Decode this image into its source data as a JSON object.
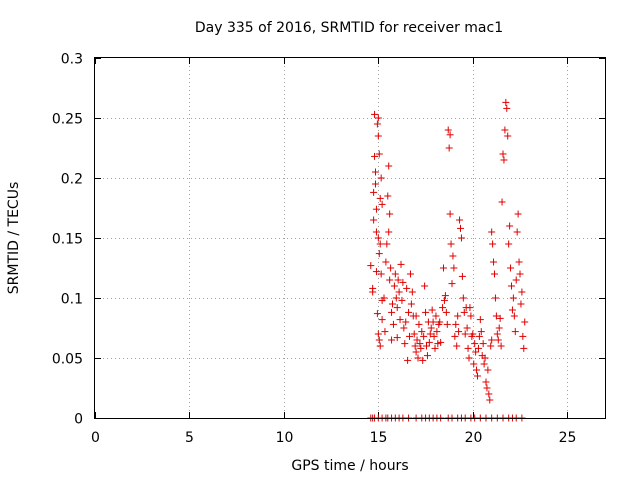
{
  "chart_data": {
    "type": "scatter",
    "title": "Day 335 of 2016, SRMTID for receiver mac1",
    "xlabel": "GPS time / hours",
    "ylabel": "SRMTID / TECUs",
    "xlim": [
      0,
      27
    ],
    "ylim": [
      0,
      0.3
    ],
    "xticks": [
      0,
      5,
      10,
      15,
      20,
      25
    ],
    "xtick_labels": [
      "0",
      "5",
      "10",
      "15",
      "20",
      "25"
    ],
    "yticks": [
      0,
      0.05,
      0.1,
      0.15,
      0.2,
      0.25,
      0.3
    ],
    "ytick_labels": [
      "0",
      "0.05",
      "0.1",
      "0.15",
      "0.2",
      "0.25",
      "0.3"
    ],
    "grid": true,
    "marker": "+",
    "color": "#e00000",
    "series": [
      {
        "name": "SRMTID",
        "points": [
          [
            14.6,
            0.0
          ],
          [
            14.7,
            0.0
          ],
          [
            14.8,
            0.0
          ],
          [
            15.0,
            0.0
          ],
          [
            15.2,
            0.0
          ],
          [
            15.4,
            0.0
          ],
          [
            15.5,
            0.0
          ],
          [
            15.7,
            0.0
          ],
          [
            15.9,
            0.0
          ],
          [
            16.1,
            0.0
          ],
          [
            16.3,
            0.0
          ],
          [
            16.6,
            0.0
          ],
          [
            17.0,
            0.0
          ],
          [
            17.3,
            0.0
          ],
          [
            17.5,
            0.0
          ],
          [
            17.7,
            0.0
          ],
          [
            17.9,
            0.0
          ],
          [
            18.1,
            0.0
          ],
          [
            18.3,
            0.0
          ],
          [
            18.7,
            0.0
          ],
          [
            18.9,
            0.0
          ],
          [
            19.2,
            0.0
          ],
          [
            19.4,
            0.0
          ],
          [
            19.6,
            0.0
          ],
          [
            19.9,
            0.0
          ],
          [
            20.1,
            0.0
          ],
          [
            20.4,
            0.0
          ],
          [
            20.7,
            0.0
          ],
          [
            21.0,
            0.0
          ],
          [
            21.3,
            0.0
          ],
          [
            21.6,
            0.0
          ],
          [
            21.9,
            0.0
          ],
          [
            22.1,
            0.0
          ],
          [
            22.3,
            0.0
          ],
          [
            22.6,
            0.0
          ],
          [
            14.6,
            0.127
          ],
          [
            14.7,
            0.108
          ],
          [
            14.7,
            0.105
          ],
          [
            14.75,
            0.165
          ],
          [
            14.75,
            0.188
          ],
          [
            14.8,
            0.253
          ],
          [
            14.8,
            0.218
          ],
          [
            14.85,
            0.205
          ],
          [
            14.85,
            0.195
          ],
          [
            14.9,
            0.174
          ],
          [
            14.9,
            0.155
          ],
          [
            14.95,
            0.245
          ],
          [
            15.0,
            0.25
          ],
          [
            15.0,
            0.235
          ],
          [
            15.0,
            0.15
          ],
          [
            15.05,
            0.22
          ],
          [
            15.05,
            0.137
          ],
          [
            15.1,
            0.183
          ],
          [
            15.1,
            0.145
          ],
          [
            15.15,
            0.2
          ],
          [
            15.15,
            0.12
          ],
          [
            15.2,
            0.178
          ],
          [
            15.2,
            0.098
          ],
          [
            14.9,
            0.122
          ],
          [
            14.95,
            0.087
          ],
          [
            15.0,
            0.07
          ],
          [
            15.05,
            0.065
          ],
          [
            15.1,
            0.06
          ],
          [
            15.2,
            0.082
          ],
          [
            15.3,
            0.1
          ],
          [
            15.35,
            0.072
          ],
          [
            15.4,
            0.13
          ],
          [
            15.45,
            0.145
          ],
          [
            15.5,
            0.185
          ],
          [
            15.55,
            0.21
          ],
          [
            15.55,
            0.155
          ],
          [
            15.6,
            0.17
          ],
          [
            15.6,
            0.115
          ],
          [
            15.65,
            0.125
          ],
          [
            15.7,
            0.088
          ],
          [
            15.7,
            0.065
          ],
          [
            15.75,
            0.095
          ],
          [
            15.8,
            0.078
          ],
          [
            15.85,
            0.11
          ],
          [
            15.9,
            0.12
          ],
          [
            15.95,
            0.1
          ],
          [
            16.0,
            0.092
          ],
          [
            16.0,
            0.067
          ],
          [
            16.05,
            0.115
          ],
          [
            16.1,
            0.105
          ],
          [
            16.15,
            0.082
          ],
          [
            16.2,
            0.128
          ],
          [
            16.25,
            0.098
          ],
          [
            16.3,
            0.113
          ],
          [
            16.35,
            0.075
          ],
          [
            16.4,
            0.062
          ],
          [
            16.45,
            0.08
          ],
          [
            16.5,
            0.108
          ],
          [
            16.55,
            0.048
          ],
          [
            16.6,
            0.088
          ],
          [
            16.65,
            0.068
          ],
          [
            16.7,
            0.12
          ],
          [
            16.75,
            0.095
          ],
          [
            16.8,
            0.105
          ],
          [
            16.85,
            0.085
          ],
          [
            16.9,
            0.07
          ],
          [
            16.95,
            0.06
          ],
          [
            17.0,
            0.055
          ],
          [
            17.0,
            0.085
          ],
          [
            17.05,
            0.065
          ],
          [
            17.1,
            0.05
          ],
          [
            17.15,
            0.078
          ],
          [
            17.2,
            0.062
          ],
          [
            17.25,
            0.058
          ],
          [
            17.3,
            0.072
          ],
          [
            17.35,
            0.048
          ],
          [
            17.4,
            0.068
          ],
          [
            17.45,
            0.11
          ],
          [
            17.5,
            0.088
          ],
          [
            17.55,
            0.06
          ],
          [
            17.6,
            0.052
          ],
          [
            17.65,
            0.08
          ],
          [
            17.7,
            0.063
          ],
          [
            17.75,
            0.07
          ],
          [
            17.8,
            0.075
          ],
          [
            17.85,
            0.09
          ],
          [
            17.9,
            0.08
          ],
          [
            17.95,
            0.068
          ],
          [
            18.0,
            0.058
          ],
          [
            18.05,
            0.085
          ],
          [
            18.1,
            0.072
          ],
          [
            18.15,
            0.062
          ],
          [
            18.2,
            0.078
          ],
          [
            18.25,
            0.08
          ],
          [
            18.3,
            0.063
          ],
          [
            18.4,
            0.092
          ],
          [
            18.45,
            0.125
          ],
          [
            18.5,
            0.098
          ],
          [
            18.55,
            0.102
          ],
          [
            18.6,
            0.088
          ],
          [
            18.65,
            0.078
          ],
          [
            18.7,
            0.24
          ],
          [
            18.75,
            0.225
          ],
          [
            18.8,
            0.236
          ],
          [
            18.8,
            0.17
          ],
          [
            18.85,
            0.145
          ],
          [
            18.9,
            0.112
          ],
          [
            18.95,
            0.135
          ],
          [
            19.0,
            0.125
          ],
          [
            19.05,
            0.068
          ],
          [
            19.1,
            0.078
          ],
          [
            19.15,
            0.06
          ],
          [
            19.2,
            0.085
          ],
          [
            19.25,
            0.072
          ],
          [
            19.3,
            0.165
          ],
          [
            19.35,
            0.158
          ],
          [
            19.4,
            0.15
          ],
          [
            19.45,
            0.118
          ],
          [
            19.5,
            0.1
          ],
          [
            19.55,
            0.088
          ],
          [
            19.6,
            0.07
          ],
          [
            19.65,
            0.092
          ],
          [
            19.7,
            0.075
          ],
          [
            19.75,
            0.058
          ],
          [
            19.8,
            0.05
          ],
          [
            19.85,
            0.092
          ],
          [
            19.9,
            0.085
          ],
          [
            19.95,
            0.068
          ],
          [
            20.0,
            0.07
          ],
          [
            20.05,
            0.045
          ],
          [
            20.1,
            0.062
          ],
          [
            20.15,
            0.055
          ],
          [
            20.2,
            0.04
          ],
          [
            20.25,
            0.035
          ],
          [
            20.3,
            0.058
          ],
          [
            20.35,
            0.068
          ],
          [
            20.4,
            0.082
          ],
          [
            20.45,
            0.072
          ],
          [
            20.5,
            0.052
          ],
          [
            20.55,
            0.062
          ],
          [
            20.6,
            0.045
          ],
          [
            20.65,
            0.05
          ],
          [
            20.7,
            0.03
          ],
          [
            20.75,
            0.025
          ],
          [
            20.8,
            0.04
          ],
          [
            20.85,
            0.02
          ],
          [
            20.9,
            0.015
          ],
          [
            20.95,
            0.06
          ],
          [
            21.0,
            0.065
          ],
          [
            21.0,
            0.155
          ],
          [
            21.05,
            0.145
          ],
          [
            21.1,
            0.13
          ],
          [
            21.15,
            0.12
          ],
          [
            21.2,
            0.1
          ],
          [
            21.25,
            0.085
          ],
          [
            21.3,
            0.07
          ],
          [
            21.35,
            0.065
          ],
          [
            21.4,
            0.075
          ],
          [
            21.45,
            0.083
          ],
          [
            21.5,
            0.06
          ],
          [
            21.55,
            0.18
          ],
          [
            21.6,
            0.22
          ],
          [
            21.65,
            0.215
          ],
          [
            21.7,
            0.24
          ],
          [
            21.75,
            0.263
          ],
          [
            21.8,
            0.258
          ],
          [
            21.85,
            0.235
          ],
          [
            21.9,
            0.145
          ],
          [
            21.95,
            0.16
          ],
          [
            22.0,
            0.125
          ],
          [
            22.05,
            0.11
          ],
          [
            22.1,
            0.09
          ],
          [
            22.15,
            0.1
          ],
          [
            22.2,
            0.085
          ],
          [
            22.25,
            0.072
          ],
          [
            22.3,
            0.115
          ],
          [
            22.35,
            0.155
          ],
          [
            22.4,
            0.17
          ],
          [
            22.45,
            0.13
          ],
          [
            22.5,
            0.12
          ],
          [
            22.55,
            0.095
          ],
          [
            22.6,
            0.105
          ],
          [
            22.65,
            0.068
          ],
          [
            22.7,
            0.058
          ],
          [
            22.75,
            0.08
          ]
        ]
      }
    ]
  }
}
